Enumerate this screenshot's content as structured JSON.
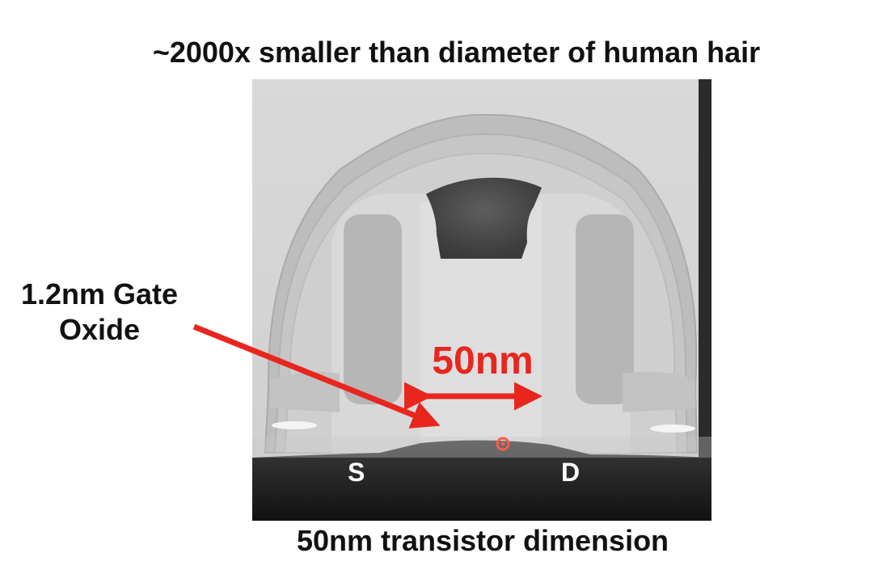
{
  "figure": {
    "title": "~2000x smaller than diameter of human hair",
    "caption": "50nm transistor dimension",
    "gate_oxide_label": [
      "1.2nm Gate",
      "Oxide"
    ],
    "dimension_label": "50nm",
    "source_label": "S",
    "drain_label": "D"
  },
  "colors": {
    "annotation_red": "#e8261e",
    "text": "#111111"
  },
  "icons": {
    "dimension_arrow": "double-headed-arrow",
    "oxide_pointer": "arrow",
    "marker": "circle-marker"
  }
}
